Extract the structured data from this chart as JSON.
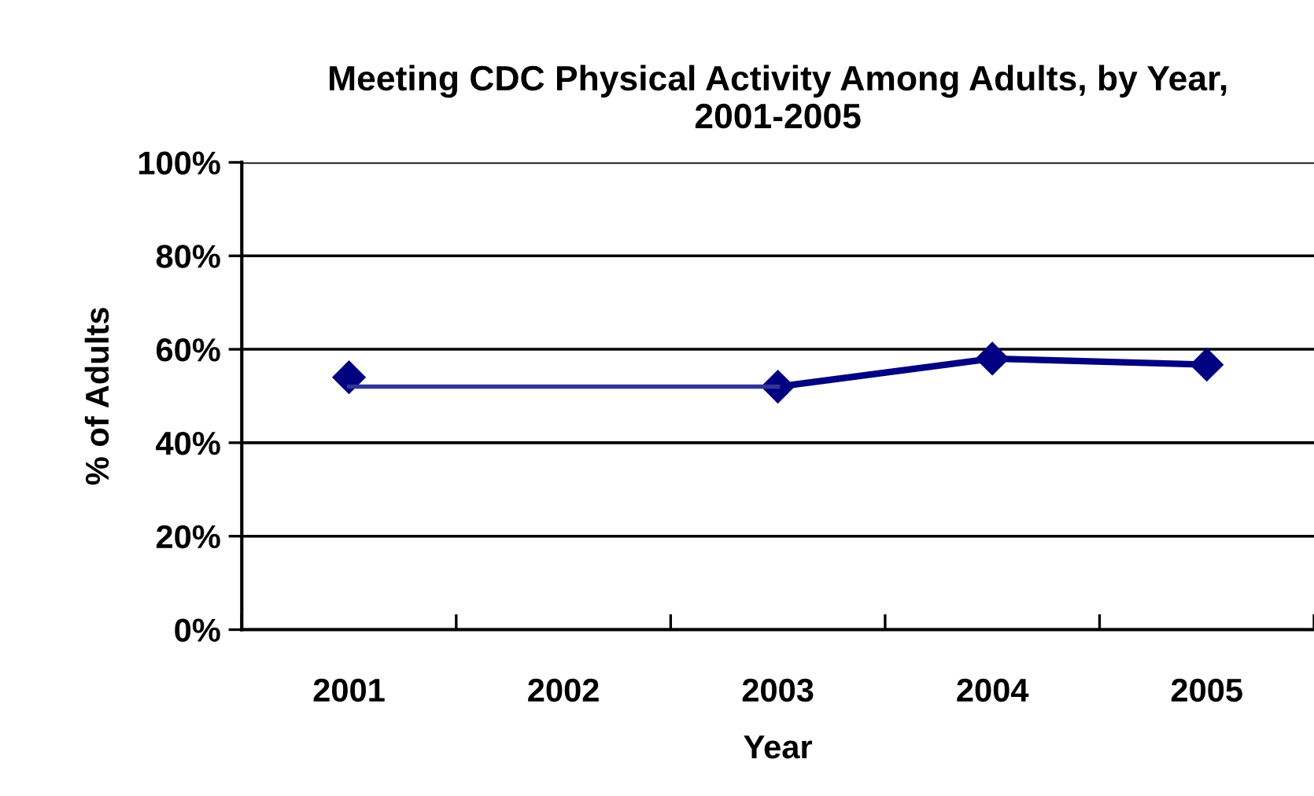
{
  "chart_data": {
    "type": "line",
    "title": "Meeting CDC Physical Activity Among Adults, by Year, 2001-2005",
    "xlabel": "Year",
    "ylabel": "% of Adults",
    "categories": [
      "2001",
      "2002",
      "2003",
      "2004",
      "2005"
    ],
    "series": [
      {
        "color": "#000080",
        "values": [
          54,
          null,
          52,
          58,
          56.7
        ],
        "marker": "diamond"
      },
      {
        "color": "#333399",
        "values": [
          52,
          52,
          52,
          null,
          null
        ],
        "marker": "none"
      }
    ],
    "ylim": [
      0,
      100
    ],
    "yticks": [
      {
        "value": 0,
        "label": "0%"
      },
      {
        "value": 20,
        "label": "20%"
      },
      {
        "value": 40,
        "label": "40%"
      },
      {
        "value": 60,
        "label": "60%"
      },
      {
        "value": 80,
        "label": "80%"
      },
      {
        "value": 100,
        "label": "100%"
      }
    ],
    "grid": "y",
    "legend": false
  }
}
